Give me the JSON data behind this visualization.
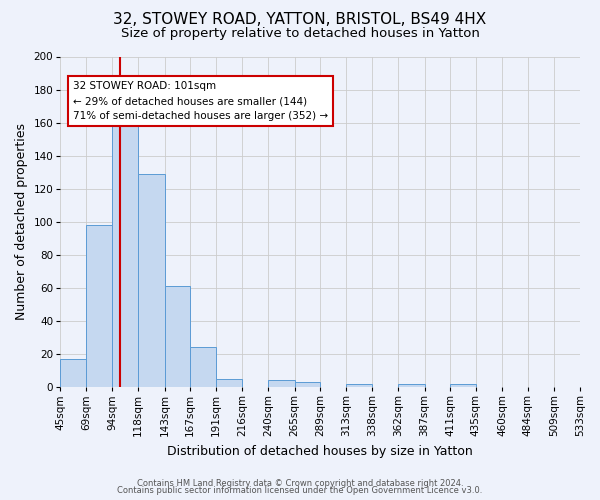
{
  "title": "32, STOWEY ROAD, YATTON, BRISTOL, BS49 4HX",
  "subtitle": "Size of property relative to detached houses in Yatton",
  "xlabel": "Distribution of detached houses by size in Yatton",
  "ylabel": "Number of detached properties",
  "bar_values": [
    17,
    98,
    158,
    129,
    61,
    24,
    5,
    0,
    4,
    3,
    0,
    2,
    0,
    2,
    0,
    2,
    0,
    0,
    0,
    0
  ],
  "bin_labels": [
    "45sqm",
    "69sqm",
    "94sqm",
    "118sqm",
    "143sqm",
    "167sqm",
    "191sqm",
    "216sqm",
    "240sqm",
    "265sqm",
    "289sqm",
    "313sqm",
    "338sqm",
    "362sqm",
    "387sqm",
    "411sqm",
    "435sqm",
    "460sqm",
    "484sqm",
    "509sqm",
    "533sqm"
  ],
  "bin_edges": [
    45,
    69,
    94,
    118,
    143,
    167,
    191,
    216,
    240,
    265,
    289,
    313,
    338,
    362,
    387,
    411,
    435,
    460,
    484,
    509,
    533
  ],
  "bar_color": "#c5d8f0",
  "bar_edge_color": "#5b9bd5",
  "vline_x": 101,
  "vline_color": "#cc0000",
  "ylim": [
    0,
    200
  ],
  "yticks": [
    0,
    20,
    40,
    60,
    80,
    100,
    120,
    140,
    160,
    180,
    200
  ],
  "annotation_title": "32 STOWEY ROAD: 101sqm",
  "annotation_line1": "← 29% of detached houses are smaller (144)",
  "annotation_line2": "71% of semi-detached houses are larger (352) →",
  "annotation_box_color": "#ffffff",
  "annotation_box_edge": "#cc0000",
  "footer_line1": "Contains HM Land Registry data © Crown copyright and database right 2024.",
  "footer_line2": "Contains public sector information licensed under the Open Government Licence v3.0.",
  "background_color": "#eef2fb",
  "grid_color": "#cccccc",
  "title_fontsize": 11,
  "subtitle_fontsize": 9.5,
  "axis_label_fontsize": 9,
  "tick_fontsize": 7.5,
  "footer_fontsize": 6
}
